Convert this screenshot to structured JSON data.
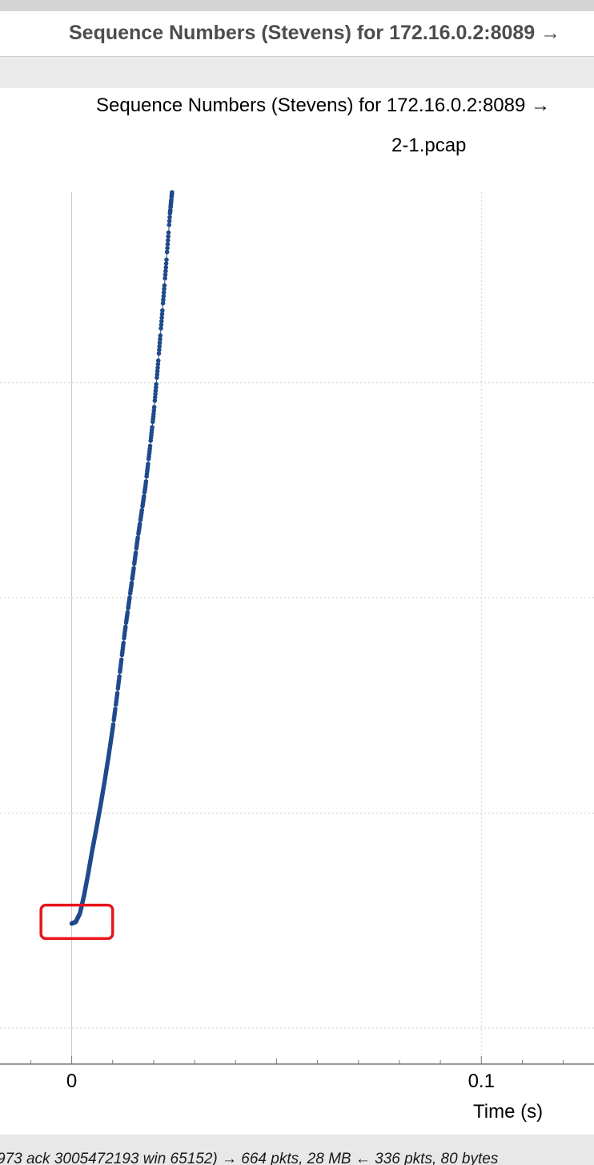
{
  "window": {
    "title": "Sequence Numbers (Stevens) for 172.16.0.2:8089 →"
  },
  "plot": {
    "title": "Sequence Numbers (Stevens) for 172.16.0.2:8089 →",
    "subtitle": "2-1.pcap",
    "x_axis_label": "Time (s)",
    "x_tick_labels": [
      "0",
      "0.1"
    ]
  },
  "status_bar": {
    "text": "973 ack 3005472193 win 65152) → 664 pkts, 28 MB ← 336 pkts, 80 bytes"
  },
  "colors": {
    "series": "#1f4a8c",
    "highlight_box": "#e8141b",
    "grid": "#d0d0d0"
  },
  "chart_data": {
    "type": "scatter",
    "title": "Sequence Numbers (Stevens) for 172.16.0.2:8089 →",
    "subtitle": "2-1.pcap",
    "xlabel": "Time (s)",
    "ylabel": "",
    "x_ticks": [
      0,
      0.1
    ],
    "xlim": [
      -0.0175,
      0.1275
    ],
    "ylim": [
      0,
      1
    ],
    "grid": true,
    "series": [
      {
        "x": [
          0.0,
          0.001,
          0.002,
          0.003,
          0.004,
          0.005,
          0.006,
          0.007,
          0.008,
          0.009,
          0.01,
          0.011,
          0.012,
          0.013,
          0.014,
          0.015,
          0.016,
          0.017,
          0.018,
          0.019,
          0.02,
          0.021,
          0.022,
          0.023,
          0.024,
          0.0245
        ],
        "y": [
          0.125,
          0.127,
          0.137,
          0.158,
          0.184,
          0.212,
          0.238,
          0.265,
          0.294,
          0.325,
          0.358,
          0.395,
          0.435,
          0.475,
          0.51,
          0.545,
          0.582,
          0.615,
          0.648,
          0.69,
          0.735,
          0.79,
          0.85,
          0.91,
          0.975,
          1.0
        ]
      }
    ],
    "annotations": [
      {
        "type": "highlight-box",
        "x": [
          -0.0075,
          0.01
        ],
        "y": [
          0.107,
          0.147
        ]
      }
    ]
  }
}
